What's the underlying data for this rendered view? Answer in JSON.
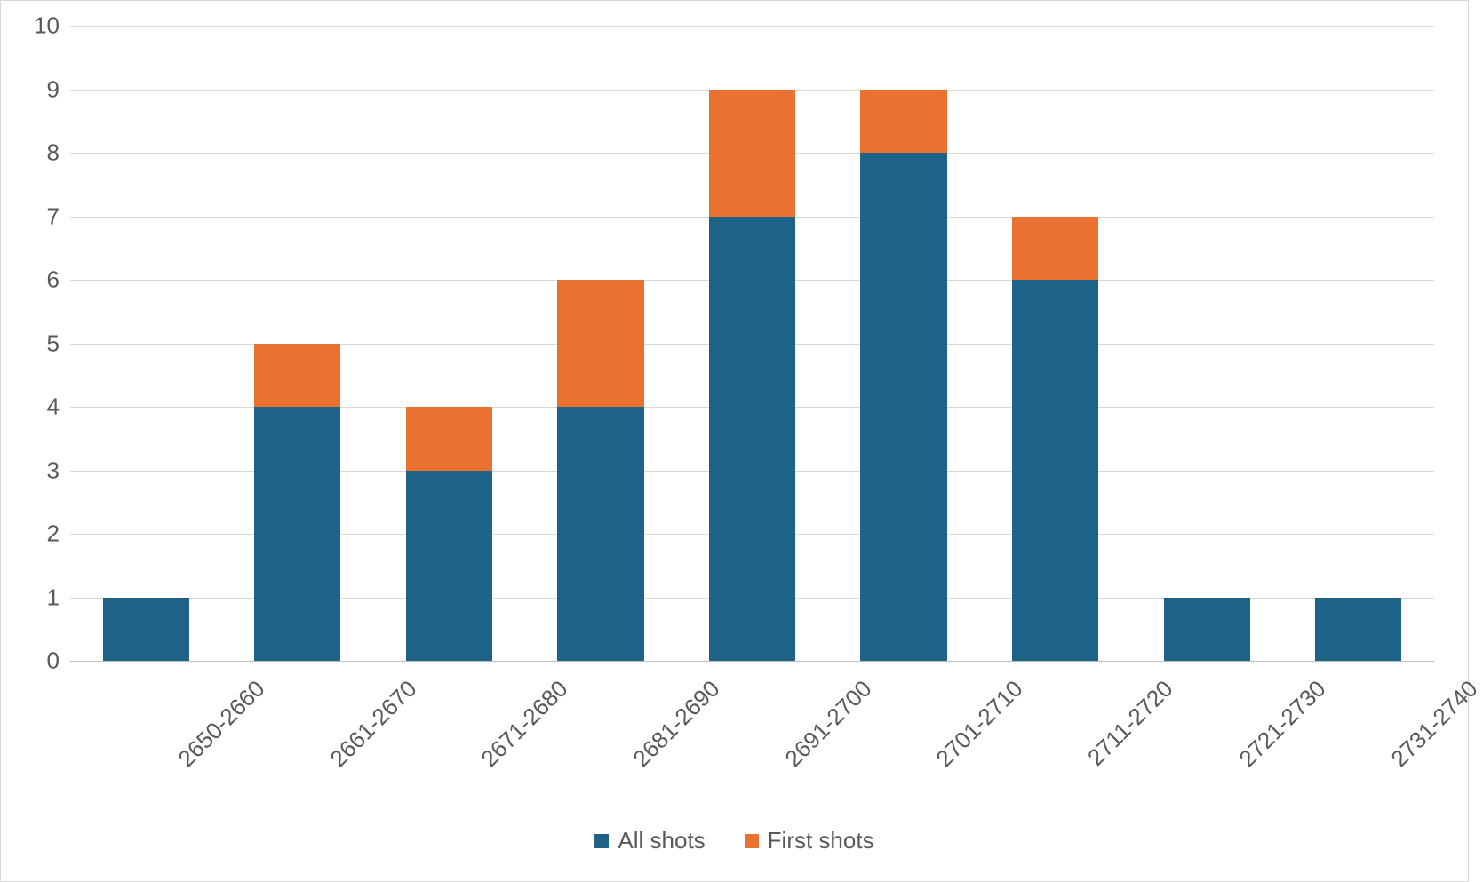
{
  "chart": {
    "type": "bar-stacked",
    "background_color": "#ffffff",
    "outer_border_color": "#d9d9d9",
    "plot_border_color": "#d9d9d9",
    "grid_color": "#d9d9d9",
    "axis_line_color": "#bfbfbf",
    "text_color": "#595959",
    "tick_fontsize": 26,
    "xlabel_fontsize": 26,
    "legend_fontsize": 26,
    "xlabel_rotation_deg": -45,
    "bar_width_ratio": 0.57,
    "ylim": [
      0,
      10
    ],
    "ytick_step": 1,
    "yticks": [
      0,
      1,
      2,
      3,
      4,
      5,
      6,
      7,
      8,
      9,
      10
    ],
    "categories": [
      "2650-2660",
      "2661-2670",
      "2671-2680",
      "2681-2690",
      "2691-2700",
      "2701-2710",
      "2711-2720",
      "2721-2730",
      "2731-2740"
    ],
    "series": [
      {
        "name": "All shots",
        "label": "All shots",
        "color": "#1f6287",
        "values": [
          1,
          4,
          3,
          4,
          7,
          8,
          6,
          1,
          1
        ]
      },
      {
        "name": "First shots",
        "label": "First shots",
        "color": "#e97132",
        "values": [
          0,
          1,
          1,
          2,
          2,
          1,
          1,
          0,
          0
        ]
      }
    ],
    "legend_position": "bottom"
  }
}
